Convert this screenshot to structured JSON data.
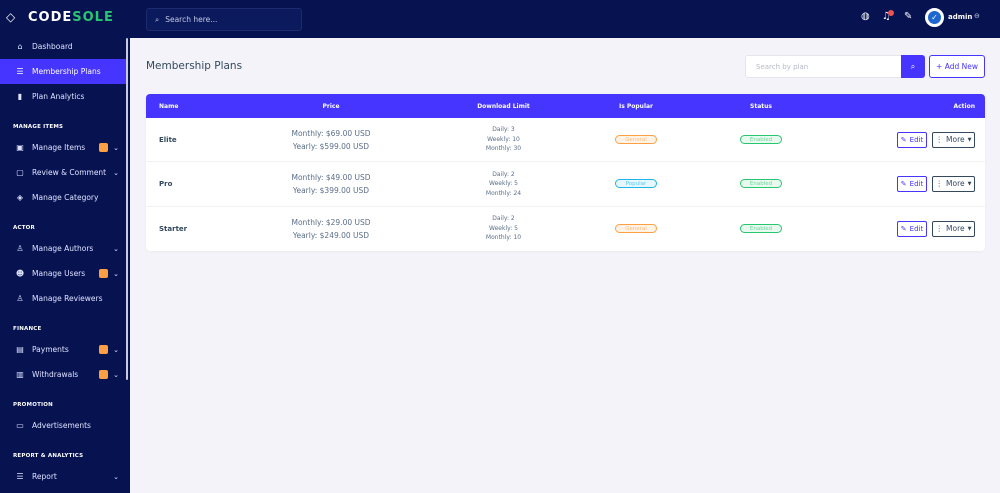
{
  "brand": {
    "logo_left": "CODE",
    "logo_right": "SOLE"
  },
  "topbar": {
    "search_placeholder": "Search here...",
    "user": "admin"
  },
  "sidebar": {
    "items_top": [
      {
        "label": "Dashboard",
        "icon": "home-icon"
      },
      {
        "label": "Membership Plans",
        "icon": "list-icon",
        "active": true
      },
      {
        "label": "Plan Analytics",
        "icon": "bar-chart-icon"
      }
    ],
    "sections": [
      {
        "title": "MANAGE ITEMS",
        "items": [
          {
            "label": "Manage Items",
            "badge": true,
            "chevron": true
          },
          {
            "label": "Review & Comment",
            "chevron": true
          },
          {
            "label": "Manage Category"
          }
        ]
      },
      {
        "title": "ACTOR",
        "items": [
          {
            "label": "Manage Authors",
            "chevron": true
          },
          {
            "label": "Manage Users",
            "badge": true,
            "chevron": true
          },
          {
            "label": "Manage Reviewers"
          }
        ]
      },
      {
        "title": "FINANCE",
        "items": [
          {
            "label": "Payments",
            "badge": true,
            "chevron": true
          },
          {
            "label": "Withdrawals",
            "badge": true,
            "chevron": true
          }
        ]
      },
      {
        "title": "PROMOTION",
        "items": [
          {
            "label": "Advertisements"
          }
        ]
      },
      {
        "title": "REPORT & ANALYTICS",
        "items": [
          {
            "label": "Report",
            "chevron": true
          }
        ]
      }
    ]
  },
  "main": {
    "title": "Membership Plans",
    "search_placeholder": "Search by plan",
    "add_label": "+ Add New",
    "columns": [
      "Name",
      "Price",
      "Download Limit",
      "Is Popular",
      "Status",
      "Action"
    ],
    "rows": [
      {
        "name": "Elite",
        "monthly": "Monthly: $69.00 USD",
        "yearly": "Yearly: $599.00 USD",
        "daily": "Daily: 3",
        "weekly": "Weekly: 10",
        "monthly_limit": "Monthly: 30",
        "popular": "General",
        "status": "Enabled"
      },
      {
        "name": "Pro",
        "monthly": "Monthly: $49.00 USD",
        "yearly": "Yearly: $399.00 USD",
        "daily": "Daily: 2",
        "weekly": "Weekly: 5",
        "monthly_limit": "Monthly: 24",
        "popular": "Popular",
        "status": "Enabled"
      },
      {
        "name": "Starter",
        "monthly": "Monthly: $29.00 USD",
        "yearly": "Yearly: $249.00 USD",
        "daily": "Daily: 2",
        "weekly": "Weekly: 5",
        "monthly_limit": "Monthly: 10",
        "popular": "General",
        "status": "Enabled"
      }
    ],
    "edit_label": "Edit",
    "more_label": "More"
  },
  "colors": {
    "primary": "#4634ff",
    "sidebar": "#071251",
    "warning": "#ff9f43",
    "success": "#28c76f",
    "info": "#1eb6e8"
  }
}
